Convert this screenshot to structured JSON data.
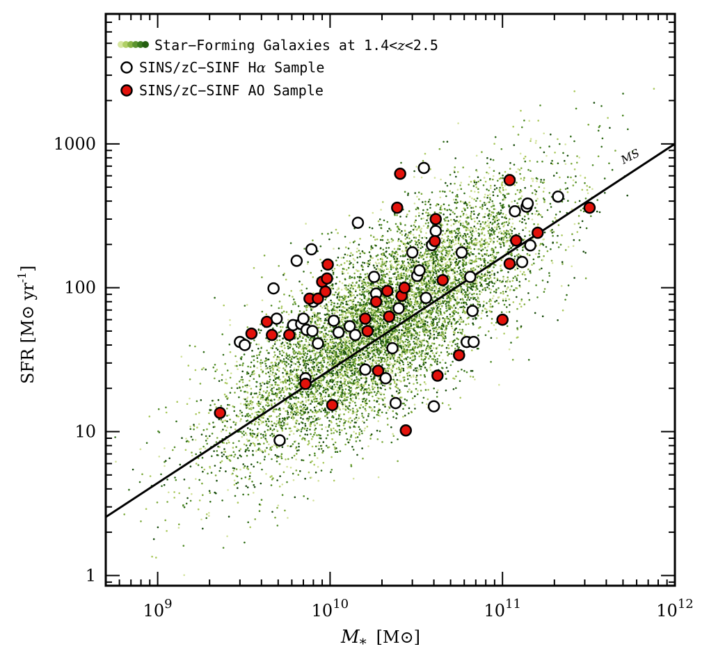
{
  "chart_data": {
    "type": "scatter",
    "xscale": "log",
    "yscale": "log",
    "xlim": [
      500000000.0,
      1000000000000.0
    ],
    "ylim": [
      0.85,
      8000
    ],
    "grid": false,
    "legend_position": "top-left",
    "xlabel": {
      "symbol": "M",
      "subscript": "*",
      "unit": "[M⊙]"
    },
    "ylabel": {
      "base": "SFR  [M⊙ yr",
      "exponent": "-1",
      "close": "]"
    },
    "xticks": [
      {
        "value": 1000000000.0,
        "base": "10",
        "exp": "9"
      },
      {
        "value": 10000000000.0,
        "base": "10",
        "exp": "10"
      },
      {
        "value": 100000000000.0,
        "base": "10",
        "exp": "11"
      },
      {
        "value": 1000000000000.0,
        "base": "10",
        "exp": "12"
      }
    ],
    "yticks": [
      {
        "value": 1,
        "label": "1"
      },
      {
        "value": 10,
        "label": "10"
      },
      {
        "value": 100,
        "label": "100"
      },
      {
        "value": 1000,
        "label": "1000"
      }
    ],
    "legend": [
      {
        "label_pre": "Star−Forming Galaxies at 1.4<",
        "label_italic": "z",
        "label_post": "<2.5",
        "marker": "green-dots"
      },
      {
        "label_pre": "SINS/zC−SINF H",
        "label_italic": "α",
        "label_post": " Sample",
        "marker": "white-circle"
      },
      {
        "label_pre": "SINS/zC−SINF AO Sample",
        "label_italic": "",
        "label_post": "",
        "marker": "red-circle"
      }
    ],
    "main_sequence": {
      "label": "MS",
      "points": [
        {
          "x": 500000000.0,
          "y": 2.55
        },
        {
          "x": 1000000000000.0,
          "y": 1000
        }
      ]
    },
    "colors": {
      "green_shades": [
        "#d2e29a",
        "#a8c75a",
        "#7aa83a",
        "#4e8a25",
        "#2c6a14",
        "#164a0a"
      ],
      "ha_fill": "#ffffff",
      "ao_fill": "#e3120b",
      "edge": "#000000",
      "line": "#000000"
    },
    "background_population": {
      "description_count": 9000,
      "center_logM": 10.3,
      "sd_logM": 0.45,
      "slope": 0.8,
      "intercept_logSFR_at_center": 1.75,
      "scatter_dex": 0.3
    },
    "series": [
      {
        "name": "SINS/zC-SINF Hα Sample",
        "points": [
          [
            3000000000.0,
            42
          ],
          [
            3200000000.0,
            40
          ],
          [
            4700000000.0,
            99
          ],
          [
            4900000000.0,
            61
          ],
          [
            5100000000.0,
            8.7
          ],
          [
            6100000000.0,
            55
          ],
          [
            6400000000.0,
            154
          ],
          [
            6800000000.0,
            56
          ],
          [
            7000000000.0,
            61
          ],
          [
            7200000000.0,
            23.5
          ],
          [
            7300000000.0,
            51
          ],
          [
            7800000000.0,
            185
          ],
          [
            7900000000.0,
            50
          ],
          [
            8000000000.0,
            80
          ],
          [
            8500000000.0,
            41
          ],
          [
            10500000000.0,
            59
          ],
          [
            11200000000.0,
            49
          ],
          [
            13000000000.0,
            54
          ],
          [
            14000000000.0,
            47
          ],
          [
            14500000000.0,
            283
          ],
          [
            16000000000.0,
            27
          ],
          [
            18000000000.0,
            119
          ],
          [
            18500000000.0,
            91
          ],
          [
            21000000000.0,
            23.5
          ],
          [
            23000000000.0,
            38
          ],
          [
            24000000000.0,
            15.8
          ],
          [
            25000000000.0,
            72
          ],
          [
            30000000000.0,
            176
          ],
          [
            32000000000.0,
            121
          ],
          [
            33000000000.0,
            132
          ],
          [
            35000000000.0,
            680
          ],
          [
            36000000000.0,
            85
          ],
          [
            39000000000.0,
            198
          ],
          [
            40000000000.0,
            15
          ],
          [
            41000000000.0,
            248
          ],
          [
            58000000000.0,
            176
          ],
          [
            62000000000.0,
            42
          ],
          [
            65000000000.0,
            119
          ],
          [
            67000000000.0,
            69
          ],
          [
            68000000000.0,
            42
          ],
          [
            118000000000.0,
            340
          ],
          [
            130000000000.0,
            151
          ],
          [
            138000000000.0,
            366
          ],
          [
            140000000000.0,
            385
          ],
          [
            145000000000.0,
            197
          ],
          [
            210000000000.0,
            430
          ]
        ]
      },
      {
        "name": "SINS/zC-SINF AO Sample",
        "points": [
          [
            2300000000.0,
            13.5
          ],
          [
            3500000000.0,
            48
          ],
          [
            4300000000.0,
            58
          ],
          [
            4600000000.0,
            47
          ],
          [
            5800000000.0,
            47
          ],
          [
            7200000000.0,
            21.5
          ],
          [
            7600000000.0,
            84
          ],
          [
            8500000000.0,
            84
          ],
          [
            9000000000.0,
            110
          ],
          [
            9400000000.0,
            94
          ],
          [
            9600000000.0,
            116
          ],
          [
            9700000000.0,
            145
          ],
          [
            10300000000.0,
            15.3
          ],
          [
            16000000000.0,
            61
          ],
          [
            16500000000.0,
            50
          ],
          [
            18500000000.0,
            80
          ],
          [
            19000000000.0,
            26.5
          ],
          [
            21500000000.0,
            95
          ],
          [
            22000000000.0,
            63
          ],
          [
            24500000000.0,
            360
          ],
          [
            25500000000.0,
            620
          ],
          [
            26000000000.0,
            88
          ],
          [
            27000000000.0,
            100
          ],
          [
            27500000000.0,
            10.2
          ],
          [
            40500000000.0,
            211
          ],
          [
            41000000000.0,
            300
          ],
          [
            42000000000.0,
            24.5
          ],
          [
            45000000000.0,
            113
          ],
          [
            56000000000.0,
            34
          ],
          [
            100000000000.0,
            60
          ],
          [
            110000000000.0,
            147
          ],
          [
            110000000000.0,
            560
          ],
          [
            120000000000.0,
            213
          ],
          [
            160000000000.0,
            241
          ],
          [
            320000000000.0,
            360
          ]
        ]
      }
    ]
  }
}
